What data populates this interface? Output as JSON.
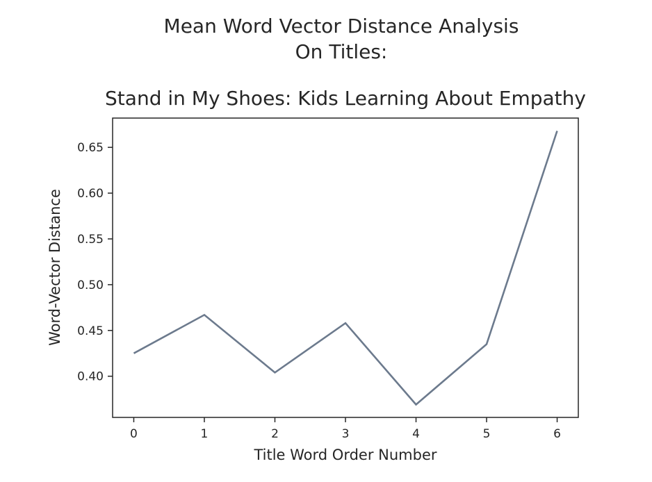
{
  "chart_data": {
    "type": "line",
    "title_lines": [
      "Mean Word Vector Distance Analysis",
      "On Titles:",
      "",
      "Stand in My Shoes: Kids Learning About Empathy"
    ],
    "xlabel": "Title Word Order Number",
    "ylabel": "Word-Vector Distance",
    "x": [
      0,
      1,
      2,
      3,
      4,
      5,
      6
    ],
    "series": [
      {
        "values": [
          0.425,
          0.467,
          0.404,
          0.458,
          0.369,
          0.435,
          0.668
        ]
      }
    ],
    "xticks": [
      "0",
      "1",
      "2",
      "3",
      "4",
      "5",
      "6"
    ],
    "yticks": [
      "0.40",
      "0.45",
      "0.50",
      "0.55",
      "0.60",
      "0.65"
    ],
    "xlim": [
      -0.3,
      6.3
    ],
    "ylim": [
      0.355,
      0.682
    ],
    "grid": false,
    "line_color": "#6c7a8d"
  }
}
